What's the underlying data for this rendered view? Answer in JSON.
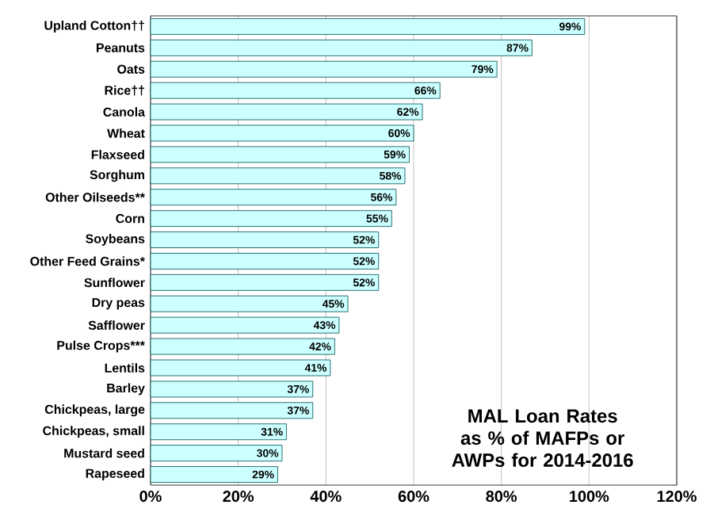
{
  "chart_data": {
    "type": "bar",
    "orientation": "horizontal",
    "categories": [
      "Upland Cotton††",
      "Peanuts",
      "Oats",
      "Rice††",
      "Canola",
      "Wheat",
      "Flaxseed",
      "Sorghum",
      "Other Oilseeds**",
      "Corn",
      "Soybeans",
      "Other Feed Grains*",
      "Sunflower",
      "Dry peas",
      "Safflower",
      "Pulse Crops***",
      "Lentils",
      "Barley",
      "Chickpeas, large",
      "Chickpeas, small",
      "Mustard seed",
      "Rapeseed"
    ],
    "values": [
      99,
      87,
      79,
      66,
      62,
      60,
      59,
      58,
      56,
      55,
      52,
      52,
      52,
      45,
      43,
      42,
      41,
      37,
      37,
      31,
      30,
      29
    ],
    "value_labels": [
      "99%",
      "87%",
      "79%",
      "66%",
      "62%",
      "60%",
      "59%",
      "58%",
      "56%",
      "55%",
      "52%",
      "52%",
      "52%",
      "45%",
      "43%",
      "42%",
      "41%",
      "37%",
      "37%",
      "31%",
      "30%",
      "29%"
    ],
    "color": "#ccffff",
    "xlim": [
      0,
      120
    ],
    "xticks": [
      {
        "value": 0,
        "label": "0%"
      },
      {
        "value": 20,
        "label": "20%"
      },
      {
        "value": 40,
        "label": "40%"
      },
      {
        "value": 60,
        "label": "60%"
      },
      {
        "value": 80,
        "label": "80%"
      },
      {
        "value": 100,
        "label": "100%"
      },
      {
        "value": 120,
        "label": "120%"
      }
    ],
    "grid": "x",
    "annotations": [
      "MAL Loan Rates as % of MAFPs or AWPs for 2014-2016"
    ]
  }
}
